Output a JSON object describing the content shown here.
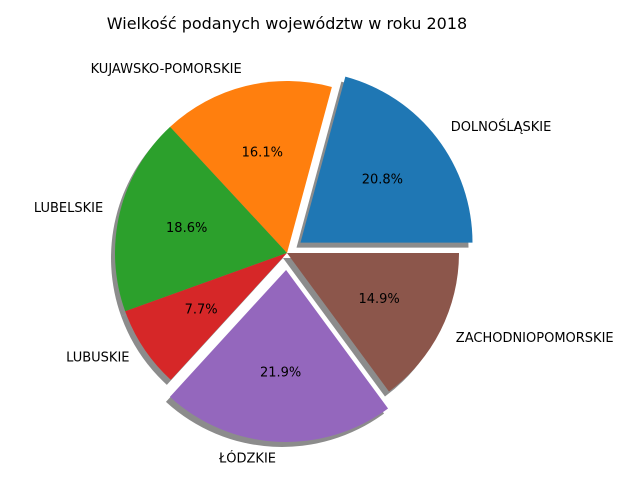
{
  "chart_data": {
    "type": "pie",
    "title": "Wielkość podanych województw w roku 2018",
    "labels": [
      "DOLNOŚLĄSKIE",
      "KUJAWSKO-POMORSKIE",
      "LUBELSKIE",
      "LUBUSKIE",
      "ŁÓDZKIE",
      "ZACHODNIOPOMORSKIE"
    ],
    "values": [
      20.8,
      16.1,
      18.6,
      7.7,
      21.9,
      14.9
    ],
    "value_labels": [
      "20.8%",
      "16.1%",
      "18.6%",
      "7.7%",
      "21.9%",
      "14.9%"
    ],
    "colors": [
      "#1f77b4",
      "#ff7f0e",
      "#2ca02c",
      "#d62728",
      "#9467bd",
      "#8c564b"
    ],
    "exploded": [
      true,
      false,
      false,
      false,
      true,
      false
    ],
    "shadow": true,
    "start_angle_deg": 0,
    "direction": "counterclockwise"
  }
}
